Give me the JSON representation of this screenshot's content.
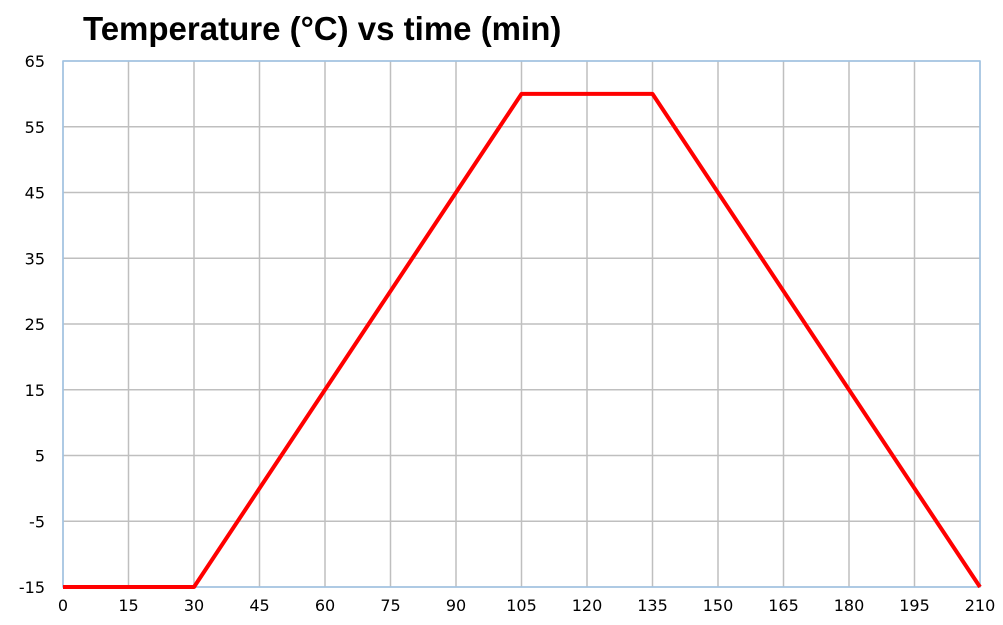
{
  "chart_data": {
    "type": "line",
    "title": "Temperature (°C) vs time (min)",
    "xlabel": "",
    "ylabel": "",
    "xlim": [
      0,
      210
    ],
    "ylim": [
      -15,
      65
    ],
    "x_ticks": [
      0,
      15,
      30,
      45,
      60,
      75,
      90,
      105,
      120,
      135,
      150,
      165,
      180,
      195,
      210
    ],
    "y_ticks": [
      -15,
      -5,
      5,
      15,
      25,
      35,
      45,
      55,
      65
    ],
    "grid": true,
    "legend": "none",
    "series": [
      {
        "color": "#ff0000",
        "x": [
          0,
          30,
          105,
          135,
          210
        ],
        "y": [
          -15,
          -15,
          60,
          60,
          -15
        ]
      }
    ]
  }
}
